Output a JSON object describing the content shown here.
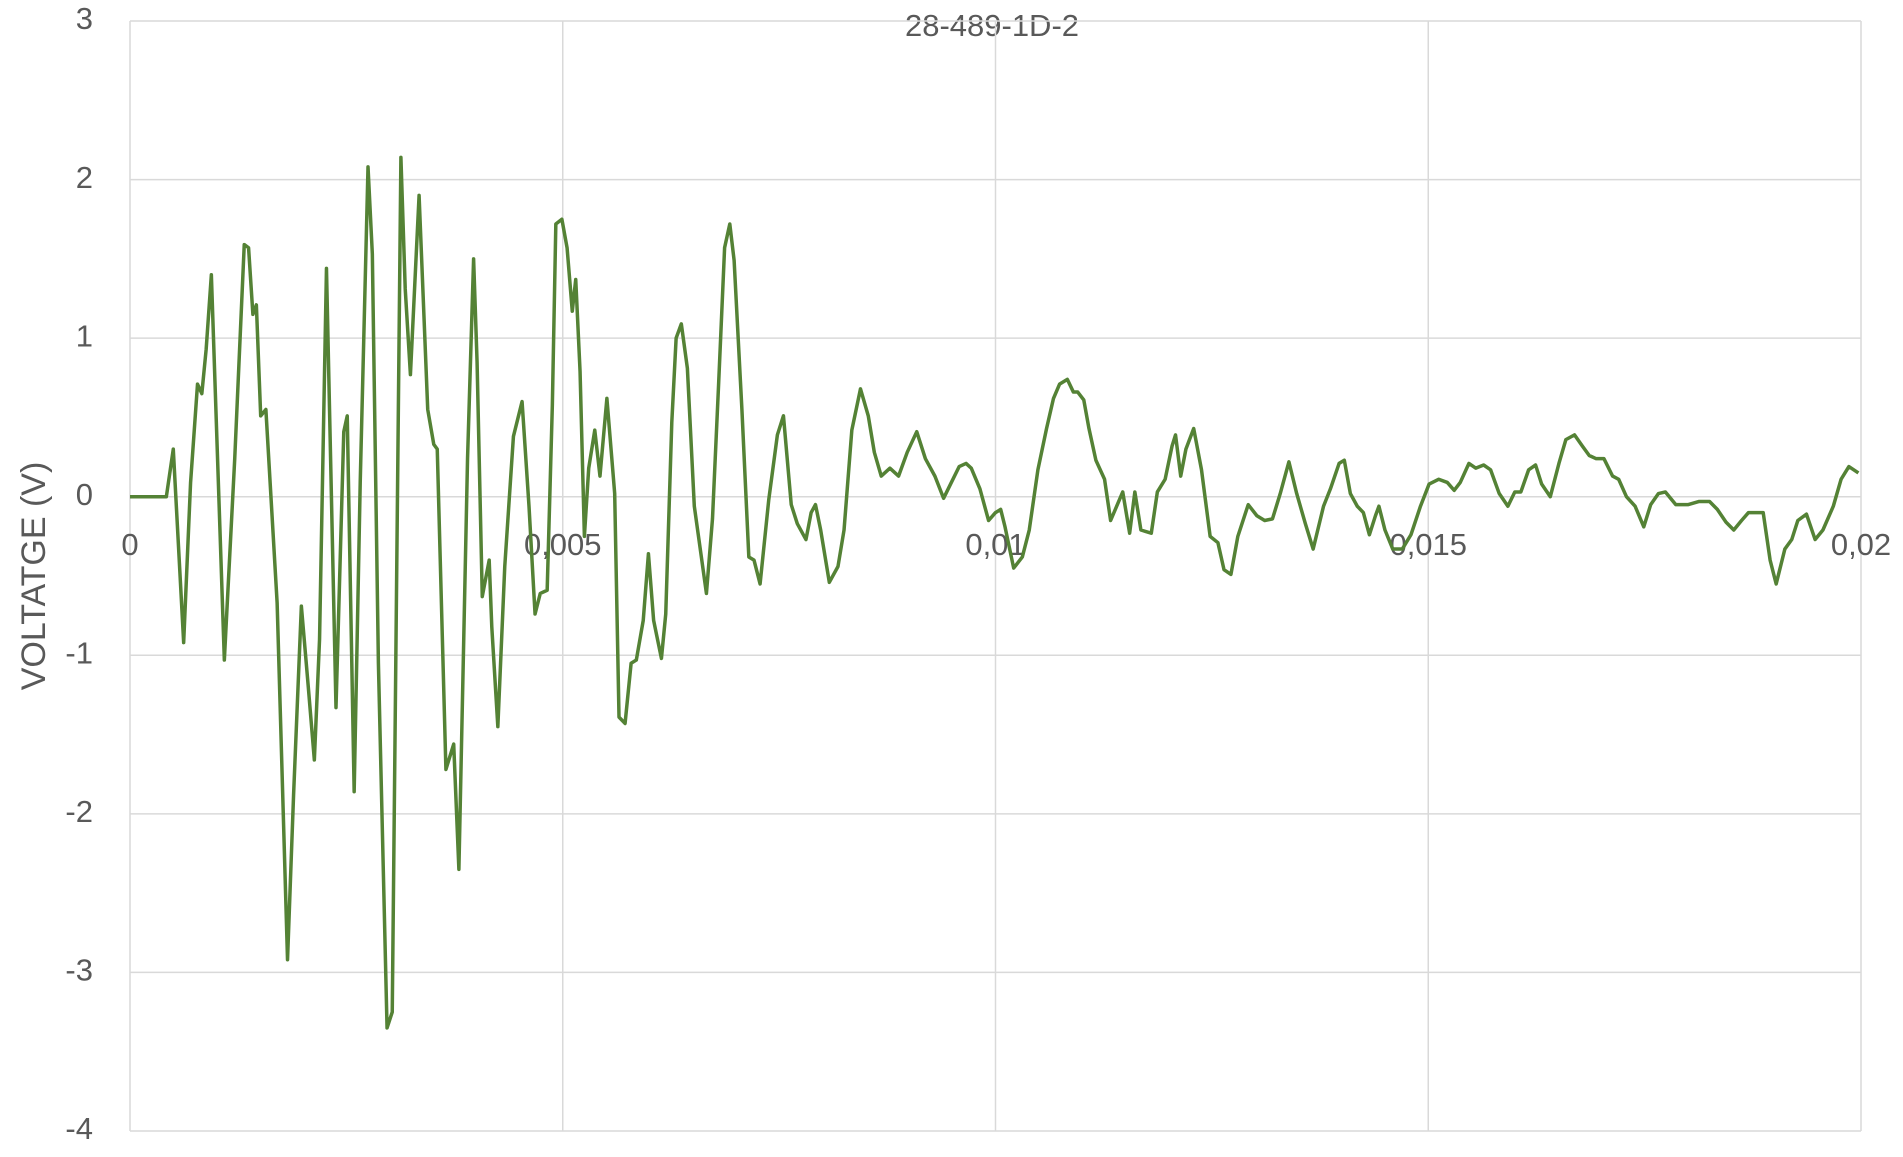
{
  "chart_data": {
    "type": "line",
    "title": "28-489-1D-2",
    "y_label": "VOLTATGE (V)",
    "xlim": [
      0,
      0.02
    ],
    "xticks": [
      0,
      {
        "value": 0.005,
        "label": "0,005"
      },
      {
        "value": 0.01,
        "label": "0,01"
      },
      {
        "value": 0.015,
        "label": "0,015"
      },
      {
        "value": 0.02,
        "label": "0,02"
      }
    ],
    "ylim": [
      -4,
      3
    ],
    "yticks": [
      -4,
      -3,
      -2,
      -1,
      0,
      1,
      2,
      3
    ],
    "grid": true,
    "series": [
      {
        "color": "#548235",
        "x": [
          0,
          0.00042,
          0.0005,
          0.00062,
          0.0007,
          0.00078,
          0.00083,
          0.00088,
          0.00094,
          0.00109,
          0.00121,
          0.00132,
          0.00137,
          0.00142,
          0.00146,
          0.00151,
          0.00157,
          0.0017,
          0.00182,
          0.00189,
          0.00198,
          0.00206,
          0.00213,
          0.00219,
          0.00227,
          0.00238,
          0.00247,
          0.00251,
          0.00259,
          0.00266,
          0.00275,
          0.0028,
          0.00287,
          0.00297,
          0.00303,
          0.00313,
          0.00318,
          0.00324,
          0.00334,
          0.00344,
          0.00351,
          0.00355,
          0.00365,
          0.00374,
          0.0038,
          0.0039,
          0.00397,
          0.00401,
          0.00407,
          0.00415,
          0.00418,
          0.00425,
          0.00433,
          0.00443,
          0.00453,
          0.00461,
          0.00468,
          0.00474,
          0.00482,
          0.00488,
          0.00492,
          0.00499,
          0.00505,
          0.00511,
          0.00515,
          0.0052,
          0.00525,
          0.0053,
          0.00537,
          0.00543,
          0.00551,
          0.0056,
          0.00565,
          0.00572,
          0.00579,
          0.00585,
          0.00593,
          0.00599,
          0.00605,
          0.00614,
          0.00619,
          0.00626,
          0.00631,
          0.00637,
          0.00644,
          0.00652,
          0.00666,
          0.00673,
          0.0068,
          0.00687,
          0.00693,
          0.00698,
          0.00707,
          0.00715,
          0.00721,
          0.00728,
          0.00738,
          0.00748,
          0.00755,
          0.00764,
          0.00771,
          0.00781,
          0.00787,
          0.00792,
          0.00798,
          0.00808,
          0.00818,
          0.00825,
          0.00834,
          0.00844,
          0.00853,
          0.0086,
          0.00868,
          0.00878,
          0.00888,
          0.00898,
          0.00909,
          0.00919,
          0.0093,
          0.0094,
          0.00949,
          0.00958,
          0.00966,
          0.00972,
          0.00982,
          0.00992,
          0.01,
          0.01006,
          0.01011,
          0.01021,
          0.01031,
          0.01039,
          0.01049,
          0.01059,
          0.01067,
          0.01074,
          0.01083,
          0.0109,
          0.01095,
          0.01102,
          0.01108,
          0.01116,
          0.01126,
          0.01133,
          0.0114,
          0.01147,
          0.01155,
          0.01161,
          0.01168,
          0.0118,
          0.01187,
          0.01196,
          0.01204,
          0.01208,
          0.01214,
          0.0122,
          0.01229,
          0.01238,
          0.01248,
          0.01257,
          0.01264,
          0.01272,
          0.0128,
          0.01292,
          0.01302,
          0.01311,
          0.0132,
          0.01329,
          0.01339,
          0.01348,
          0.01358,
          0.01367,
          0.01379,
          0.01387,
          0.01397,
          0.01403,
          0.0141,
          0.01418,
          0.01425,
          0.01432,
          0.01439,
          0.01443,
          0.0145,
          0.01459,
          0.0147,
          0.0148,
          0.01491,
          0.01501,
          0.01512,
          0.01522,
          0.0153,
          0.01537,
          0.01547,
          0.01555,
          0.01564,
          0.01572,
          0.01582,
          0.01592,
          0.016,
          0.01607,
          0.01616,
          0.01624,
          0.01631,
          0.01641,
          0.01651,
          0.01659,
          0.01669,
          0.01678,
          0.01686,
          0.01694,
          0.01703,
          0.01713,
          0.0172,
          0.01729,
          0.01739,
          0.01749,
          0.01757,
          0.01766,
          0.01774,
          0.01786,
          0.018,
          0.01813,
          0.01825,
          0.01834,
          0.01844,
          0.01853,
          0.01862,
          0.0187,
          0.01878,
          0.01887,
          0.01895,
          0.01902,
          0.01912,
          0.0192,
          0.01927,
          0.01937,
          0.01947,
          0.01956,
          0.01968,
          0.01977,
          0.01986,
          0.01997
        ],
        "values": [
          0,
          0,
          0.3,
          -0.92,
          0.09,
          0.71,
          0.65,
          0.93,
          1.4,
          -1.03,
          0.24,
          1.59,
          1.57,
          1.15,
          1.21,
          0.51,
          0.55,
          -0.67,
          -2.92,
          -1.88,
          -0.69,
          -1.2,
          -1.66,
          -0.9,
          1.44,
          -1.33,
          0.41,
          0.51,
          -1.86,
          0.09,
          2.08,
          1.53,
          -1.05,
          -3.35,
          -3.25,
          2.14,
          1.31,
          0.77,
          1.9,
          0.55,
          0.33,
          0.3,
          -1.72,
          -1.56,
          -2.35,
          0.24,
          1.5,
          0.85,
          -0.63,
          -0.4,
          -0.82,
          -1.45,
          -0.44,
          0.38,
          0.6,
          -0.06,
          -0.74,
          -0.61,
          -0.59,
          0.58,
          1.72,
          1.75,
          1.57,
          1.17,
          1.37,
          0.79,
          -0.25,
          0.18,
          0.42,
          0.13,
          0.62,
          0.02,
          -1.39,
          -1.43,
          -1.05,
          -1.03,
          -0.78,
          -0.36,
          -0.78,
          -1.02,
          -0.74,
          0.47,
          1,
          1.09,
          0.81,
          -0.06,
          -0.61,
          -0.14,
          0.7,
          1.57,
          1.72,
          1.49,
          0.55,
          -0.38,
          -0.4,
          -0.55,
          -0.02,
          0.39,
          0.51,
          -0.05,
          -0.17,
          -0.27,
          -0.1,
          -0.05,
          -0.21,
          -0.54,
          -0.44,
          -0.21,
          0.42,
          0.68,
          0.51,
          0.28,
          0.13,
          0.18,
          0.13,
          0.28,
          0.41,
          0.24,
          0.13,
          -0.01,
          0.09,
          0.19,
          0.21,
          0.18,
          0.05,
          -0.15,
          -0.1,
          -0.08,
          -0.19,
          -0.45,
          -0.38,
          -0.21,
          0.17,
          0.43,
          0.62,
          0.71,
          0.74,
          0.66,
          0.66,
          0.61,
          0.43,
          0.23,
          0.11,
          -0.15,
          -0.06,
          0.03,
          -0.23,
          0.03,
          -0.21,
          -0.23,
          0.03,
          0.11,
          0.32,
          0.39,
          0.13,
          0.3,
          0.43,
          0.17,
          -0.25,
          -0.29,
          -0.46,
          -0.49,
          -0.25,
          -0.05,
          -0.12,
          -0.15,
          -0.14,
          0.02,
          0.22,
          0.02,
          -0.17,
          -0.33,
          -0.06,
          0.05,
          0.21,
          0.23,
          0.02,
          -0.06,
          -0.1,
          -0.24,
          -0.12,
          -0.06,
          -0.21,
          -0.33,
          -0.33,
          -0.24,
          -0.06,
          0.08,
          0.11,
          0.09,
          0.04,
          0.09,
          0.21,
          0.18,
          0.2,
          0.17,
          0.02,
          -0.06,
          0.03,
          0.03,
          0.17,
          0.2,
          0.08,
          0,
          0.21,
          0.36,
          0.39,
          0.32,
          0.26,
          0.24,
          0.24,
          0.13,
          0.11,
          0,
          -0.06,
          -0.19,
          -0.05,
          0.02,
          0.03,
          -0.05,
          -0.05,
          -0.03,
          -0.03,
          -0.08,
          -0.16,
          -0.21,
          -0.15,
          -0.1,
          -0.1,
          -0.1,
          -0.4,
          -0.55,
          -0.33,
          -0.27,
          -0.15,
          -0.11,
          -0.27,
          -0.21,
          -0.06,
          0.11,
          0.19,
          0.15
        ]
      }
    ]
  }
}
